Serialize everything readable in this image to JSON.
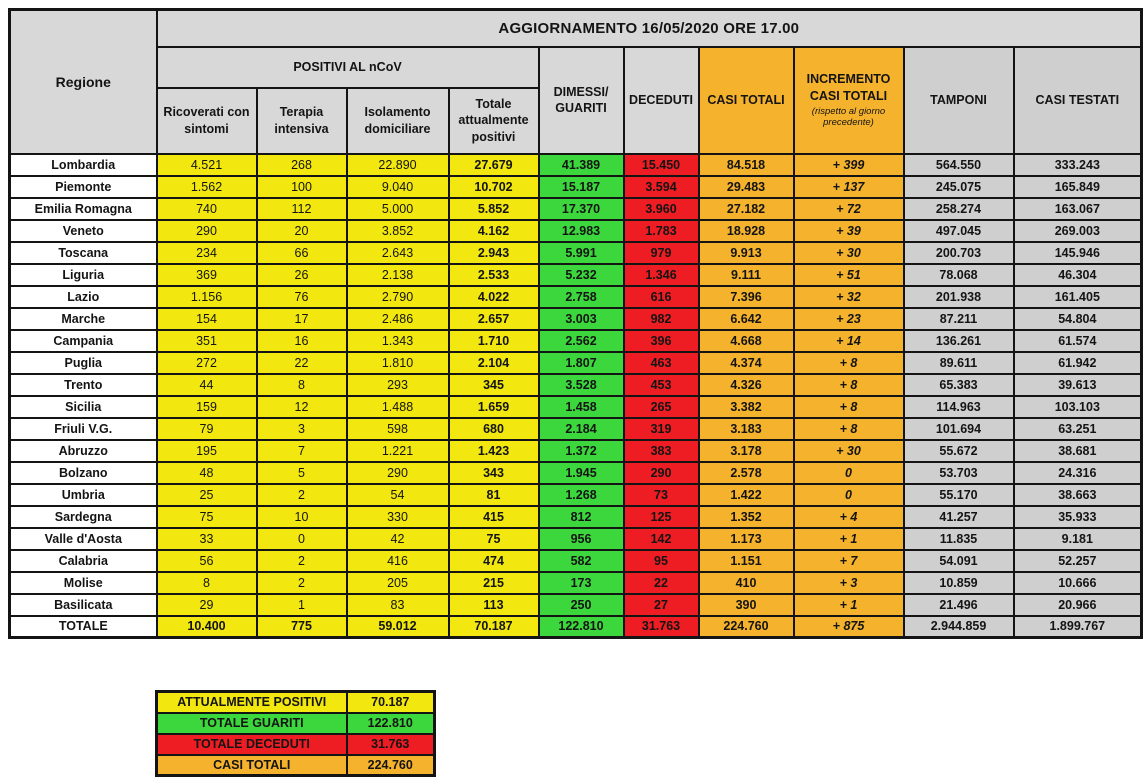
{
  "title": "AGGIORNAMENTO 16/05/2020 ORE 17.00",
  "headers": {
    "regione": "Regione",
    "positivi_group": "POSITIVI AL nCoV",
    "ricoverati": "Ricoverati con sintomi",
    "terapia": "Terapia intensiva",
    "isolamento": "Isolamento domiciliare",
    "totale_positivi": "Totale attualmente positivi",
    "dimessi": "DIMESSI/ GUARITI",
    "deceduti": "DECEDUTI",
    "casi_totali": "CASI TOTALI",
    "incremento": "INCREMENTO CASI TOTALI",
    "incremento_note": "(rispetto al giorno precedente)",
    "tamponi": "TAMPONI",
    "casi_testati": "CASI TESTATI"
  },
  "chart_data": {
    "type": "table",
    "columns": [
      "Regione",
      "Ricoverati con sintomi",
      "Terapia intensiva",
      "Isolamento domiciliare",
      "Totale attualmente positivi",
      "DIMESSI/GUARITI",
      "DECEDUTI",
      "CASI TOTALI",
      "INCREMENTO CASI TOTALI (rispetto al giorno precedente)",
      "TAMPONI",
      "CASI TESTATI"
    ],
    "rows": [
      {
        "regione": "Lombardia",
        "ricoverati": "4.521",
        "terapia": "268",
        "isolamento": "22.890",
        "totale_positivi": "27.679",
        "dimessi": "41.389",
        "deceduti": "15.450",
        "casi_totali": "84.518",
        "incremento": "+ 399",
        "tamponi": "564.550",
        "casi_testati": "333.243"
      },
      {
        "regione": "Piemonte",
        "ricoverati": "1.562",
        "terapia": "100",
        "isolamento": "9.040",
        "totale_positivi": "10.702",
        "dimessi": "15.187",
        "deceduti": "3.594",
        "casi_totali": "29.483",
        "incremento": "+ 137",
        "tamponi": "245.075",
        "casi_testati": "165.849"
      },
      {
        "regione": "Emilia Romagna",
        "ricoverati": "740",
        "terapia": "112",
        "isolamento": "5.000",
        "totale_positivi": "5.852",
        "dimessi": "17.370",
        "deceduti": "3.960",
        "casi_totali": "27.182",
        "incremento": "+ 72",
        "tamponi": "258.274",
        "casi_testati": "163.067"
      },
      {
        "regione": "Veneto",
        "ricoverati": "290",
        "terapia": "20",
        "isolamento": "3.852",
        "totale_positivi": "4.162",
        "dimessi": "12.983",
        "deceduti": "1.783",
        "casi_totali": "18.928",
        "incremento": "+ 39",
        "tamponi": "497.045",
        "casi_testati": "269.003"
      },
      {
        "regione": "Toscana",
        "ricoverati": "234",
        "terapia": "66",
        "isolamento": "2.643",
        "totale_positivi": "2.943",
        "dimessi": "5.991",
        "deceduti": "979",
        "casi_totali": "9.913",
        "incremento": "+ 30",
        "tamponi": "200.703",
        "casi_testati": "145.946"
      },
      {
        "regione": "Liguria",
        "ricoverati": "369",
        "terapia": "26",
        "isolamento": "2.138",
        "totale_positivi": "2.533",
        "dimessi": "5.232",
        "deceduti": "1.346",
        "casi_totali": "9.111",
        "incremento": "+ 51",
        "tamponi": "78.068",
        "casi_testati": "46.304"
      },
      {
        "regione": "Lazio",
        "ricoverati": "1.156",
        "terapia": "76",
        "isolamento": "2.790",
        "totale_positivi": "4.022",
        "dimessi": "2.758",
        "deceduti": "616",
        "casi_totali": "7.396",
        "incremento": "+ 32",
        "tamponi": "201.938",
        "casi_testati": "161.405"
      },
      {
        "regione": "Marche",
        "ricoverati": "154",
        "terapia": "17",
        "isolamento": "2.486",
        "totale_positivi": "2.657",
        "dimessi": "3.003",
        "deceduti": "982",
        "casi_totali": "6.642",
        "incremento": "+ 23",
        "tamponi": "87.211",
        "casi_testati": "54.804"
      },
      {
        "regione": "Campania",
        "ricoverati": "351",
        "terapia": "16",
        "isolamento": "1.343",
        "totale_positivi": "1.710",
        "dimessi": "2.562",
        "deceduti": "396",
        "casi_totali": "4.668",
        "incremento": "+ 14",
        "tamponi": "136.261",
        "casi_testati": "61.574"
      },
      {
        "regione": "Puglia",
        "ricoverati": "272",
        "terapia": "22",
        "isolamento": "1.810",
        "totale_positivi": "2.104",
        "dimessi": "1.807",
        "deceduti": "463",
        "casi_totali": "4.374",
        "incremento": "+ 8",
        "tamponi": "89.611",
        "casi_testati": "61.942"
      },
      {
        "regione": "Trento",
        "ricoverati": "44",
        "terapia": "8",
        "isolamento": "293",
        "totale_positivi": "345",
        "dimessi": "3.528",
        "deceduti": "453",
        "casi_totali": "4.326",
        "incremento": "+ 8",
        "tamponi": "65.383",
        "casi_testati": "39.613"
      },
      {
        "regione": "Sicilia",
        "ricoverati": "159",
        "terapia": "12",
        "isolamento": "1.488",
        "totale_positivi": "1.659",
        "dimessi": "1.458",
        "deceduti": "265",
        "casi_totali": "3.382",
        "incremento": "+ 8",
        "tamponi": "114.963",
        "casi_testati": "103.103"
      },
      {
        "regione": "Friuli V.G.",
        "ricoverati": "79",
        "terapia": "3",
        "isolamento": "598",
        "totale_positivi": "680",
        "dimessi": "2.184",
        "deceduti": "319",
        "casi_totali": "3.183",
        "incremento": "+ 8",
        "tamponi": "101.694",
        "casi_testati": "63.251"
      },
      {
        "regione": "Abruzzo",
        "ricoverati": "195",
        "terapia": "7",
        "isolamento": "1.221",
        "totale_positivi": "1.423",
        "dimessi": "1.372",
        "deceduti": "383",
        "casi_totali": "3.178",
        "incremento": "+ 30",
        "tamponi": "55.672",
        "casi_testati": "38.681"
      },
      {
        "regione": "Bolzano",
        "ricoverati": "48",
        "terapia": "5",
        "isolamento": "290",
        "totale_positivi": "343",
        "dimessi": "1.945",
        "deceduti": "290",
        "casi_totali": "2.578",
        "incremento": "0",
        "tamponi": "53.703",
        "casi_testati": "24.316"
      },
      {
        "regione": "Umbria",
        "ricoverati": "25",
        "terapia": "2",
        "isolamento": "54",
        "totale_positivi": "81",
        "dimessi": "1.268",
        "deceduti": "73",
        "casi_totali": "1.422",
        "incremento": "0",
        "tamponi": "55.170",
        "casi_testati": "38.663"
      },
      {
        "regione": "Sardegna",
        "ricoverati": "75",
        "terapia": "10",
        "isolamento": "330",
        "totale_positivi": "415",
        "dimessi": "812",
        "deceduti": "125",
        "casi_totali": "1.352",
        "incremento": "+ 4",
        "tamponi": "41.257",
        "casi_testati": "35.933"
      },
      {
        "regione": "Valle d'Aosta",
        "ricoverati": "33",
        "terapia": "0",
        "isolamento": "42",
        "totale_positivi": "75",
        "dimessi": "956",
        "deceduti": "142",
        "casi_totali": "1.173",
        "incremento": "+ 1",
        "tamponi": "11.835",
        "casi_testati": "9.181"
      },
      {
        "regione": "Calabria",
        "ricoverati": "56",
        "terapia": "2",
        "isolamento": "416",
        "totale_positivi": "474",
        "dimessi": "582",
        "deceduti": "95",
        "casi_totali": "1.151",
        "incremento": "+ 7",
        "tamponi": "54.091",
        "casi_testati": "52.257"
      },
      {
        "regione": "Molise",
        "ricoverati": "8",
        "terapia": "2",
        "isolamento": "205",
        "totale_positivi": "215",
        "dimessi": "173",
        "deceduti": "22",
        "casi_totali": "410",
        "incremento": "+ 3",
        "tamponi": "10.859",
        "casi_testati": "10.666"
      },
      {
        "regione": "Basilicata",
        "ricoverati": "29",
        "terapia": "1",
        "isolamento": "83",
        "totale_positivi": "113",
        "dimessi": "250",
        "deceduti": "27",
        "casi_totali": "390",
        "incremento": "+ 1",
        "tamponi": "21.496",
        "casi_testati": "20.966"
      }
    ],
    "total": {
      "regione": "TOTALE",
      "ricoverati": "10.400",
      "terapia": "775",
      "isolamento": "59.012",
      "totale_positivi": "70.187",
      "dimessi": "122.810",
      "deceduti": "31.763",
      "casi_totali": "224.760",
      "incremento": "+ 875",
      "tamponi": "2.944.859",
      "casi_testati": "1.899.767"
    }
  },
  "summary": [
    {
      "label": "ATTUALMENTE POSITIVI",
      "value": "70.187",
      "color": "yellow"
    },
    {
      "label": "TOTALE GUARITI",
      "value": "122.810",
      "color": "green"
    },
    {
      "label": "TOTALE DECEDUTI",
      "value": "31.763",
      "color": "red"
    },
    {
      "label": "CASI TOTALI",
      "value": "224.760",
      "color": "orange"
    }
  ],
  "colors": {
    "yellow": "#F2E70E",
    "green": "#3CD73C",
    "red": "#EE1D23",
    "orange": "#F5B22D",
    "header_gray": "#D8D8D8",
    "cell_gray": "#CFCFCF",
    "border": "#141414"
  }
}
